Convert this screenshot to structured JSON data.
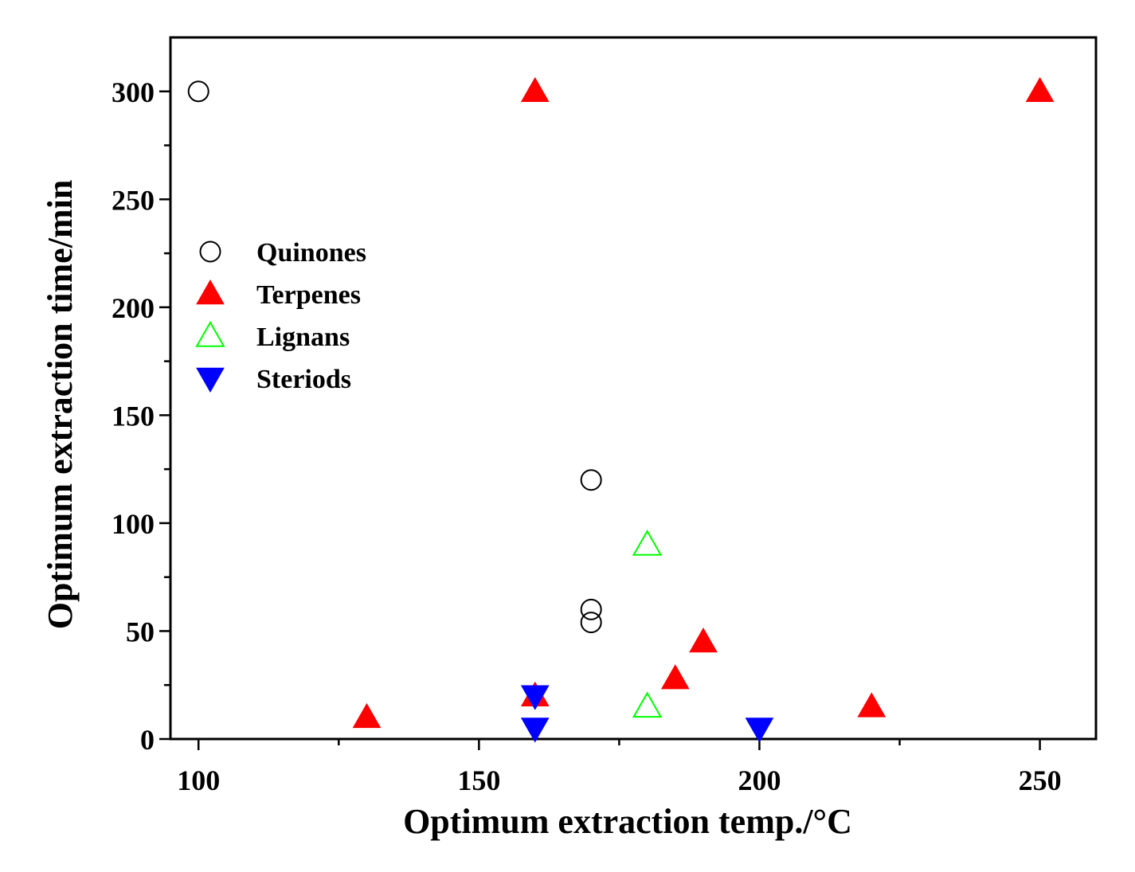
{
  "chart_data": {
    "type": "scatter",
    "title": "",
    "xlabel": "Optimum extraction temp./°C",
    "ylabel": "Optimum extraction time/min",
    "xlim": [
      95,
      260
    ],
    "ylim": [
      0,
      325
    ],
    "xticks": [
      100,
      150,
      200,
      250
    ],
    "yticks": [
      0,
      50,
      100,
      150,
      200,
      250,
      300
    ],
    "xtick_labels": [
      "100",
      "150",
      "200",
      "250"
    ],
    "ytick_labels": [
      "0",
      "50",
      "100",
      "150",
      "200",
      "250",
      "300"
    ],
    "legend_position": "upper-left",
    "series": [
      {
        "name": "Quinones",
        "marker": "circle-open",
        "color": "#000000",
        "points": [
          [
            100,
            300
          ],
          [
            170,
            120
          ],
          [
            170,
            60
          ],
          [
            170,
            54
          ]
        ]
      },
      {
        "name": "Terpenes",
        "marker": "triangle-up-filled",
        "color": "#ff0000",
        "points": [
          [
            130,
            10
          ],
          [
            160,
            300
          ],
          [
            160,
            20
          ],
          [
            185,
            28
          ],
          [
            190,
            45
          ],
          [
            220,
            15
          ],
          [
            250,
            300
          ]
        ]
      },
      {
        "name": "Lignans",
        "marker": "triangle-up-open",
        "color": "#00ff00",
        "points": [
          [
            180,
            90
          ],
          [
            180,
            15
          ]
        ]
      },
      {
        "name": "Steriods",
        "marker": "triangle-down-filled",
        "color": "#0000ff",
        "points": [
          [
            160,
            20
          ],
          [
            160,
            5
          ],
          [
            200,
            5
          ]
        ]
      }
    ]
  }
}
